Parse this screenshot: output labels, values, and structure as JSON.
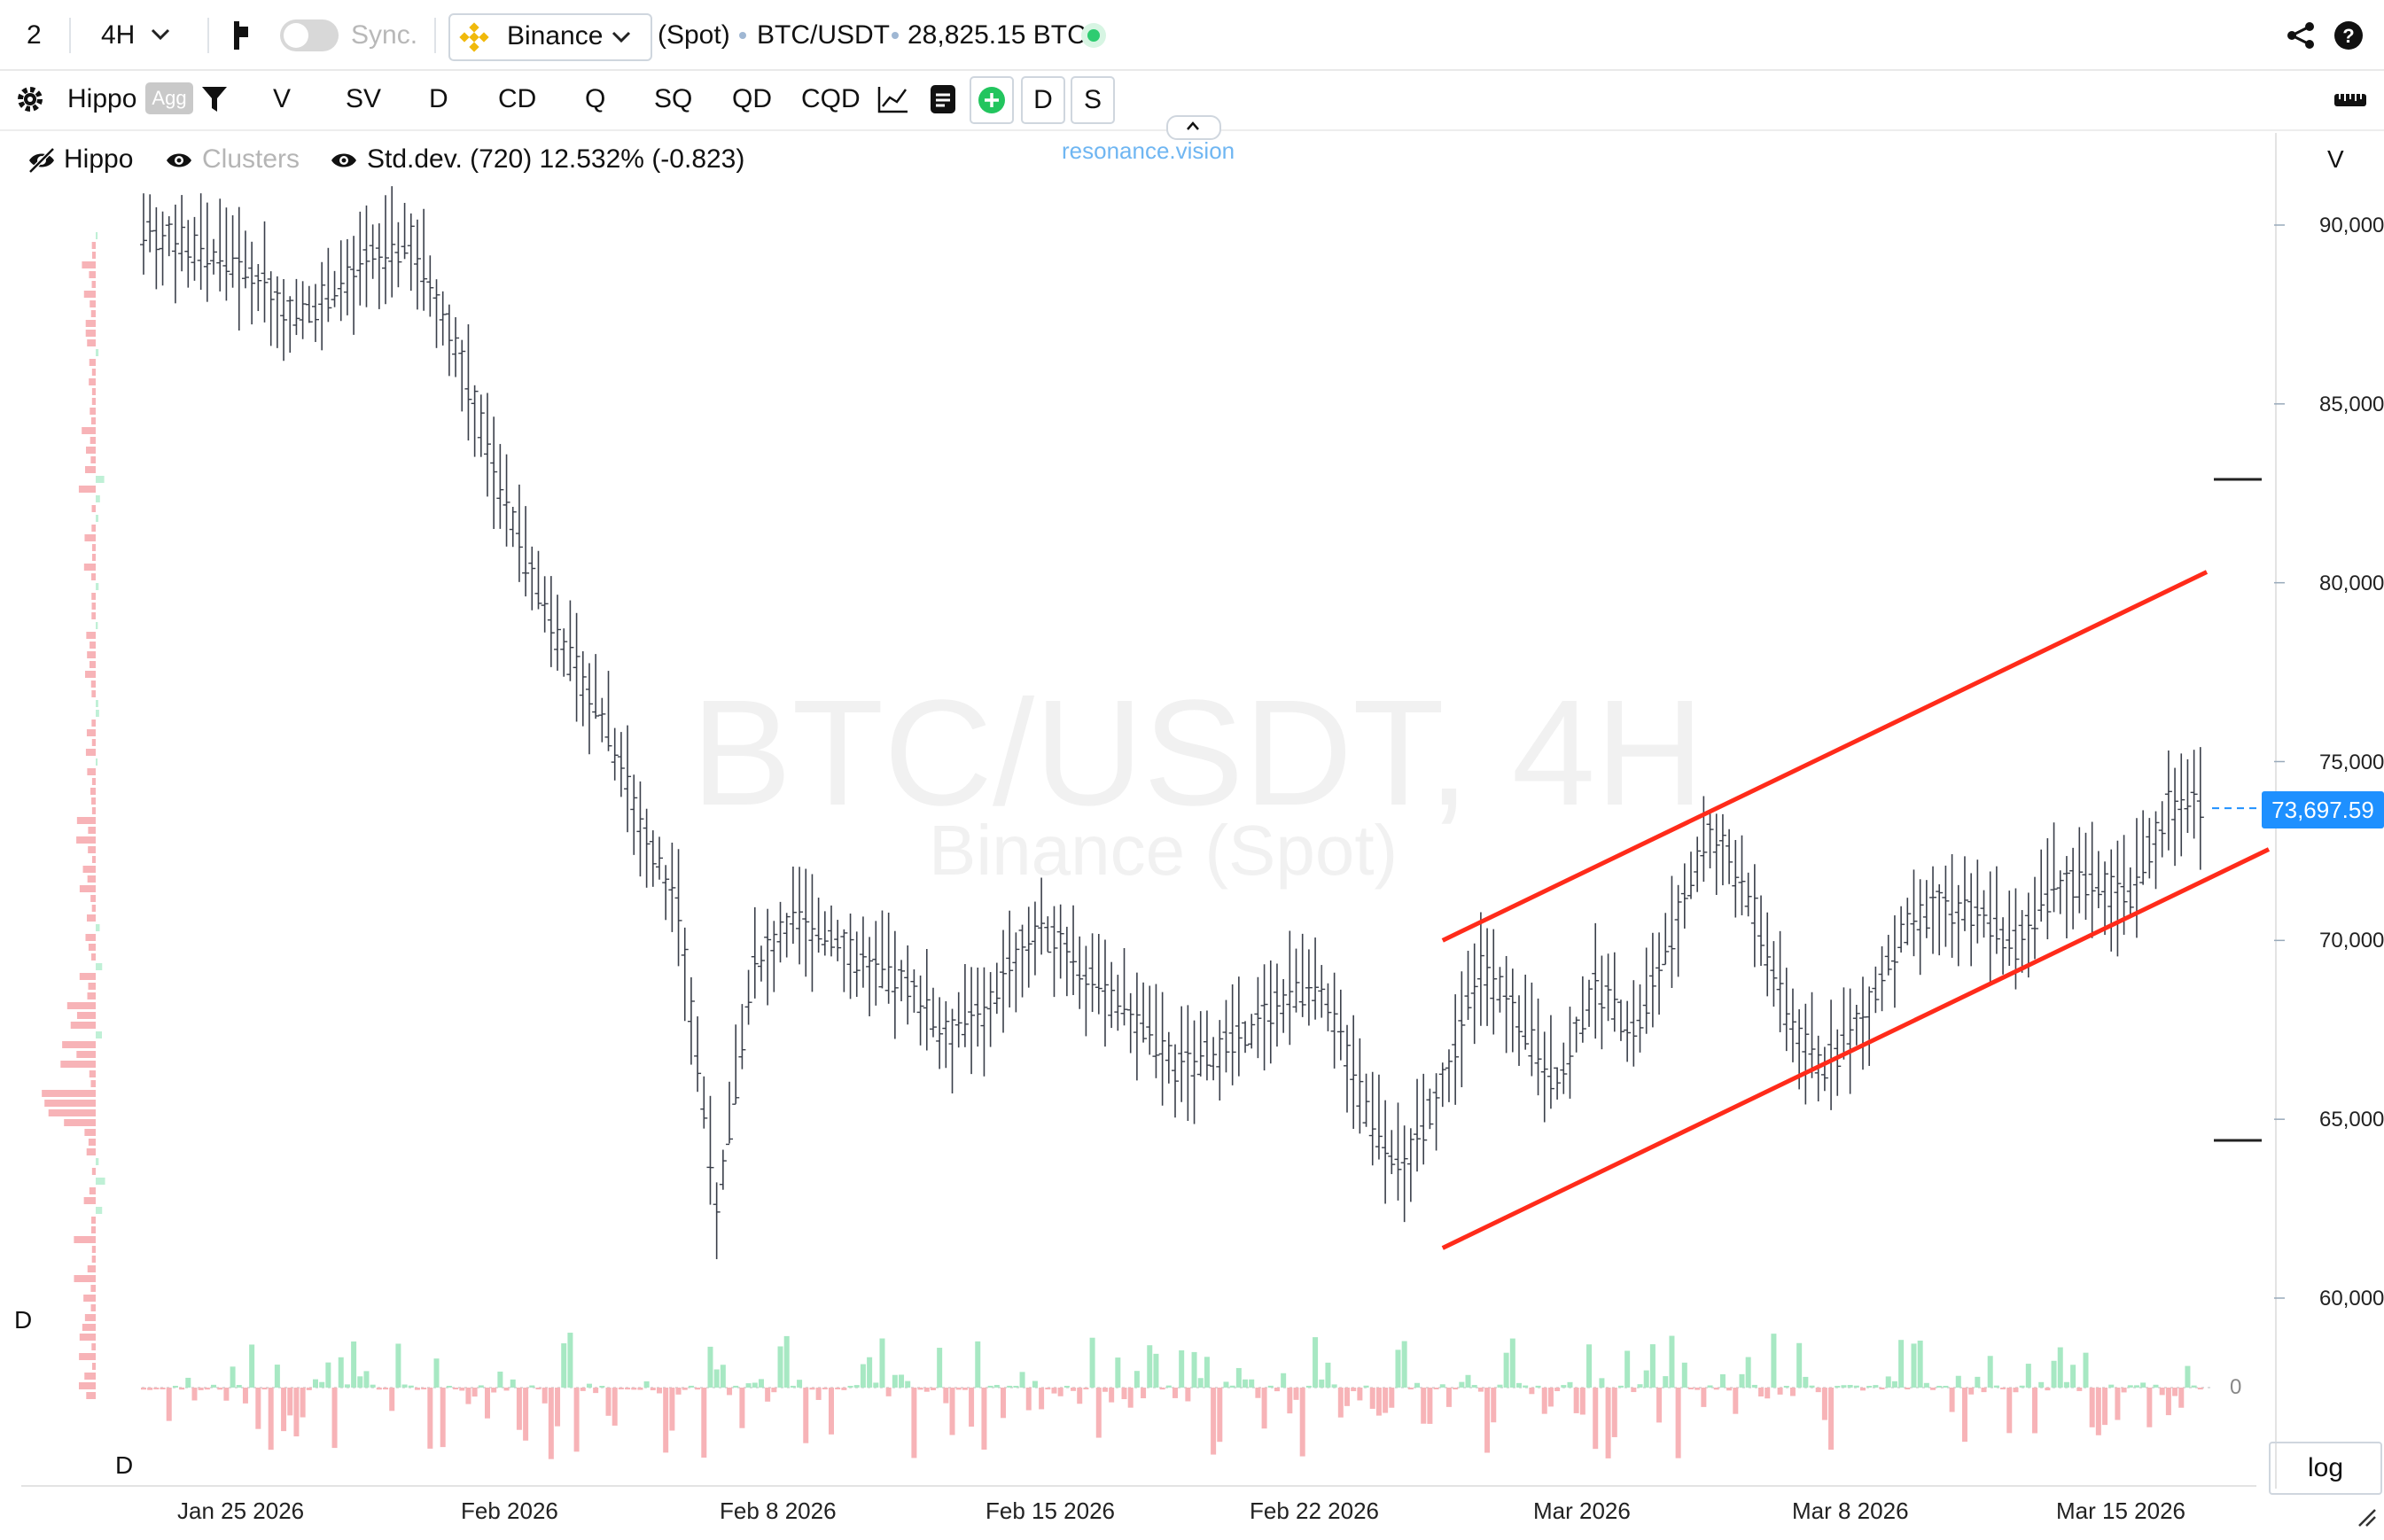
{
  "toolbar": {
    "layout_number": "2",
    "timeframe": "4H",
    "sync_label": "Sync.",
    "exchange": "Binance",
    "market_type": "(Spot)",
    "symbol": "BTC/USDT",
    "volume": "28,825.15 BTC",
    "status_color": "#2ecc71"
  },
  "indicator_bar": {
    "indicator_name": "Hippo",
    "agg_label": "Agg",
    "buttons": [
      "V",
      "SV",
      "D",
      "CD",
      "Q",
      "SQ",
      "QD",
      "CQD"
    ],
    "box_buttons": [
      "D",
      "S"
    ]
  },
  "legend": {
    "hippo": "Hippo",
    "clusters": "Clusters",
    "stddev": "Std.dev. (720) 12.532% (-0.823)"
  },
  "branding": "resonance.vision",
  "watermark": {
    "line1": "BTC/USDT, 4H",
    "line2": "Binance (Spot)"
  },
  "price_axis": {
    "header": "V",
    "ticks": [
      "90,000.00",
      "85,000.00",
      "80,000.00",
      "75,000.00",
      "70,000.00",
      "65,000.00",
      "60,000.00"
    ],
    "current_price": "73,697.59",
    "current_price_color": "#1e90ff"
  },
  "sub_axis": {
    "zero_label": "0"
  },
  "left_labels": {
    "profile_label": "D",
    "delta_label": "D"
  },
  "time_axis": [
    "Jan 25 2026",
    "Feb 2026",
    "Feb 8 2026",
    "Feb 15 2026",
    "Feb 22 2026",
    "Mar 2026",
    "Mar 8 2026",
    "Mar 15 2026"
  ],
  "log_button": "log",
  "channel_color": "#ff2b1a",
  "chart_data": {
    "type": "line",
    "title": "BTC/USDT, 4H",
    "x": [
      "Jan 23",
      "Jan 24",
      "Jan 25",
      "Jan 26",
      "Jan 27",
      "Jan 28",
      "Jan 29",
      "Jan 30",
      "Jan 31",
      "Feb 1",
      "Feb 2",
      "Feb 3",
      "Feb 4",
      "Feb 5",
      "Feb 6",
      "Feb 7",
      "Feb 8",
      "Feb 9",
      "Feb 10",
      "Feb 11",
      "Feb 12",
      "Feb 13",
      "Feb 14",
      "Feb 15",
      "Feb 16",
      "Feb 17",
      "Feb 18",
      "Feb 19",
      "Feb 20",
      "Feb 21",
      "Feb 22",
      "Feb 23",
      "Feb 24",
      "Feb 25",
      "Feb 26",
      "Feb 27",
      "Feb 28",
      "Mar 1",
      "Mar 2",
      "Mar 3",
      "Mar 4",
      "Mar 5",
      "Mar 6",
      "Mar 7",
      "Mar 8",
      "Mar 9",
      "Mar 10",
      "Mar 11",
      "Mar 12",
      "Mar 13",
      "Mar 14",
      "Mar 15",
      "Mar 16",
      "Mar 17",
      "Mar 18"
    ],
    "series": [
      {
        "values": [
          89800,
          89500,
          89000,
          88500,
          87400,
          88200,
          89000,
          89600,
          87200,
          83800,
          80500,
          78200,
          76300,
          73400,
          70800,
          62500,
          69200,
          70600,
          70100,
          69200,
          68800,
          67400,
          67900,
          69900,
          70200,
          68500,
          67800,
          66500,
          66800,
          67400,
          68600,
          68200,
          65200,
          63600,
          66000,
          69300,
          67800,
          66000,
          68700,
          67500,
          70200,
          73100,
          71300,
          68000,
          66400,
          67900,
          70200,
          71000,
          70800,
          69900,
          71500,
          71600,
          71200,
          73800,
          73700
        ]
      }
    ],
    "ylim": [
      58000,
      92000
    ],
    "channel_upper": [
      [
        "Feb 26",
        70000
      ],
      [
        "Mar 18",
        80300
      ]
    ],
    "channel_lower": [
      [
        "Feb 26",
        61400
      ],
      [
        "Mar 18",
        72200
      ]
    ]
  }
}
